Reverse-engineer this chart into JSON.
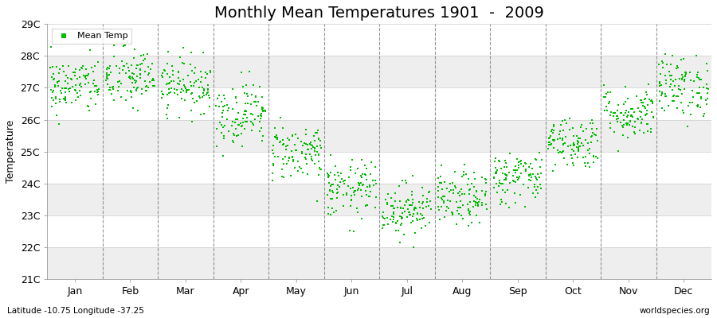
{
  "title": "Monthly Mean Temperatures 1901  -  2009",
  "ylabel": "Temperature",
  "xlabel_bottom_left": "Latitude -10.75 Longitude -37.25",
  "xlabel_bottom_right": "worldspecies.org",
  "legend_label": "Mean Temp",
  "dot_color": "#00BB00",
  "background_color": "#FFFFFF",
  "band_color_light": "#EEEEEE",
  "band_color_white": "#FFFFFF",
  "ylim": [
    21,
    29
  ],
  "yticks": [
    21,
    22,
    23,
    24,
    25,
    26,
    27,
    28,
    29
  ],
  "ytick_labels": [
    "21C",
    "22C",
    "23C",
    "24C",
    "25C",
    "26C",
    "27C",
    "28C",
    "29C"
  ],
  "months": [
    "Jan",
    "Feb",
    "Mar",
    "Apr",
    "May",
    "Jun",
    "Jul",
    "Aug",
    "Sep",
    "Oct",
    "Nov",
    "Dec"
  ],
  "monthly_means": [
    27.05,
    27.3,
    27.1,
    26.2,
    25.0,
    23.8,
    23.2,
    23.5,
    24.2,
    25.3,
    26.2,
    27.05
  ],
  "monthly_stds": [
    0.45,
    0.48,
    0.42,
    0.5,
    0.45,
    0.45,
    0.42,
    0.42,
    0.42,
    0.42,
    0.42,
    0.48
  ],
  "n_years": 109,
  "seed": 42,
  "dot_size": 4,
  "title_fontsize": 14,
  "axis_fontsize": 9,
  "ylabel_fontsize": 9,
  "legend_fontsize": 8
}
